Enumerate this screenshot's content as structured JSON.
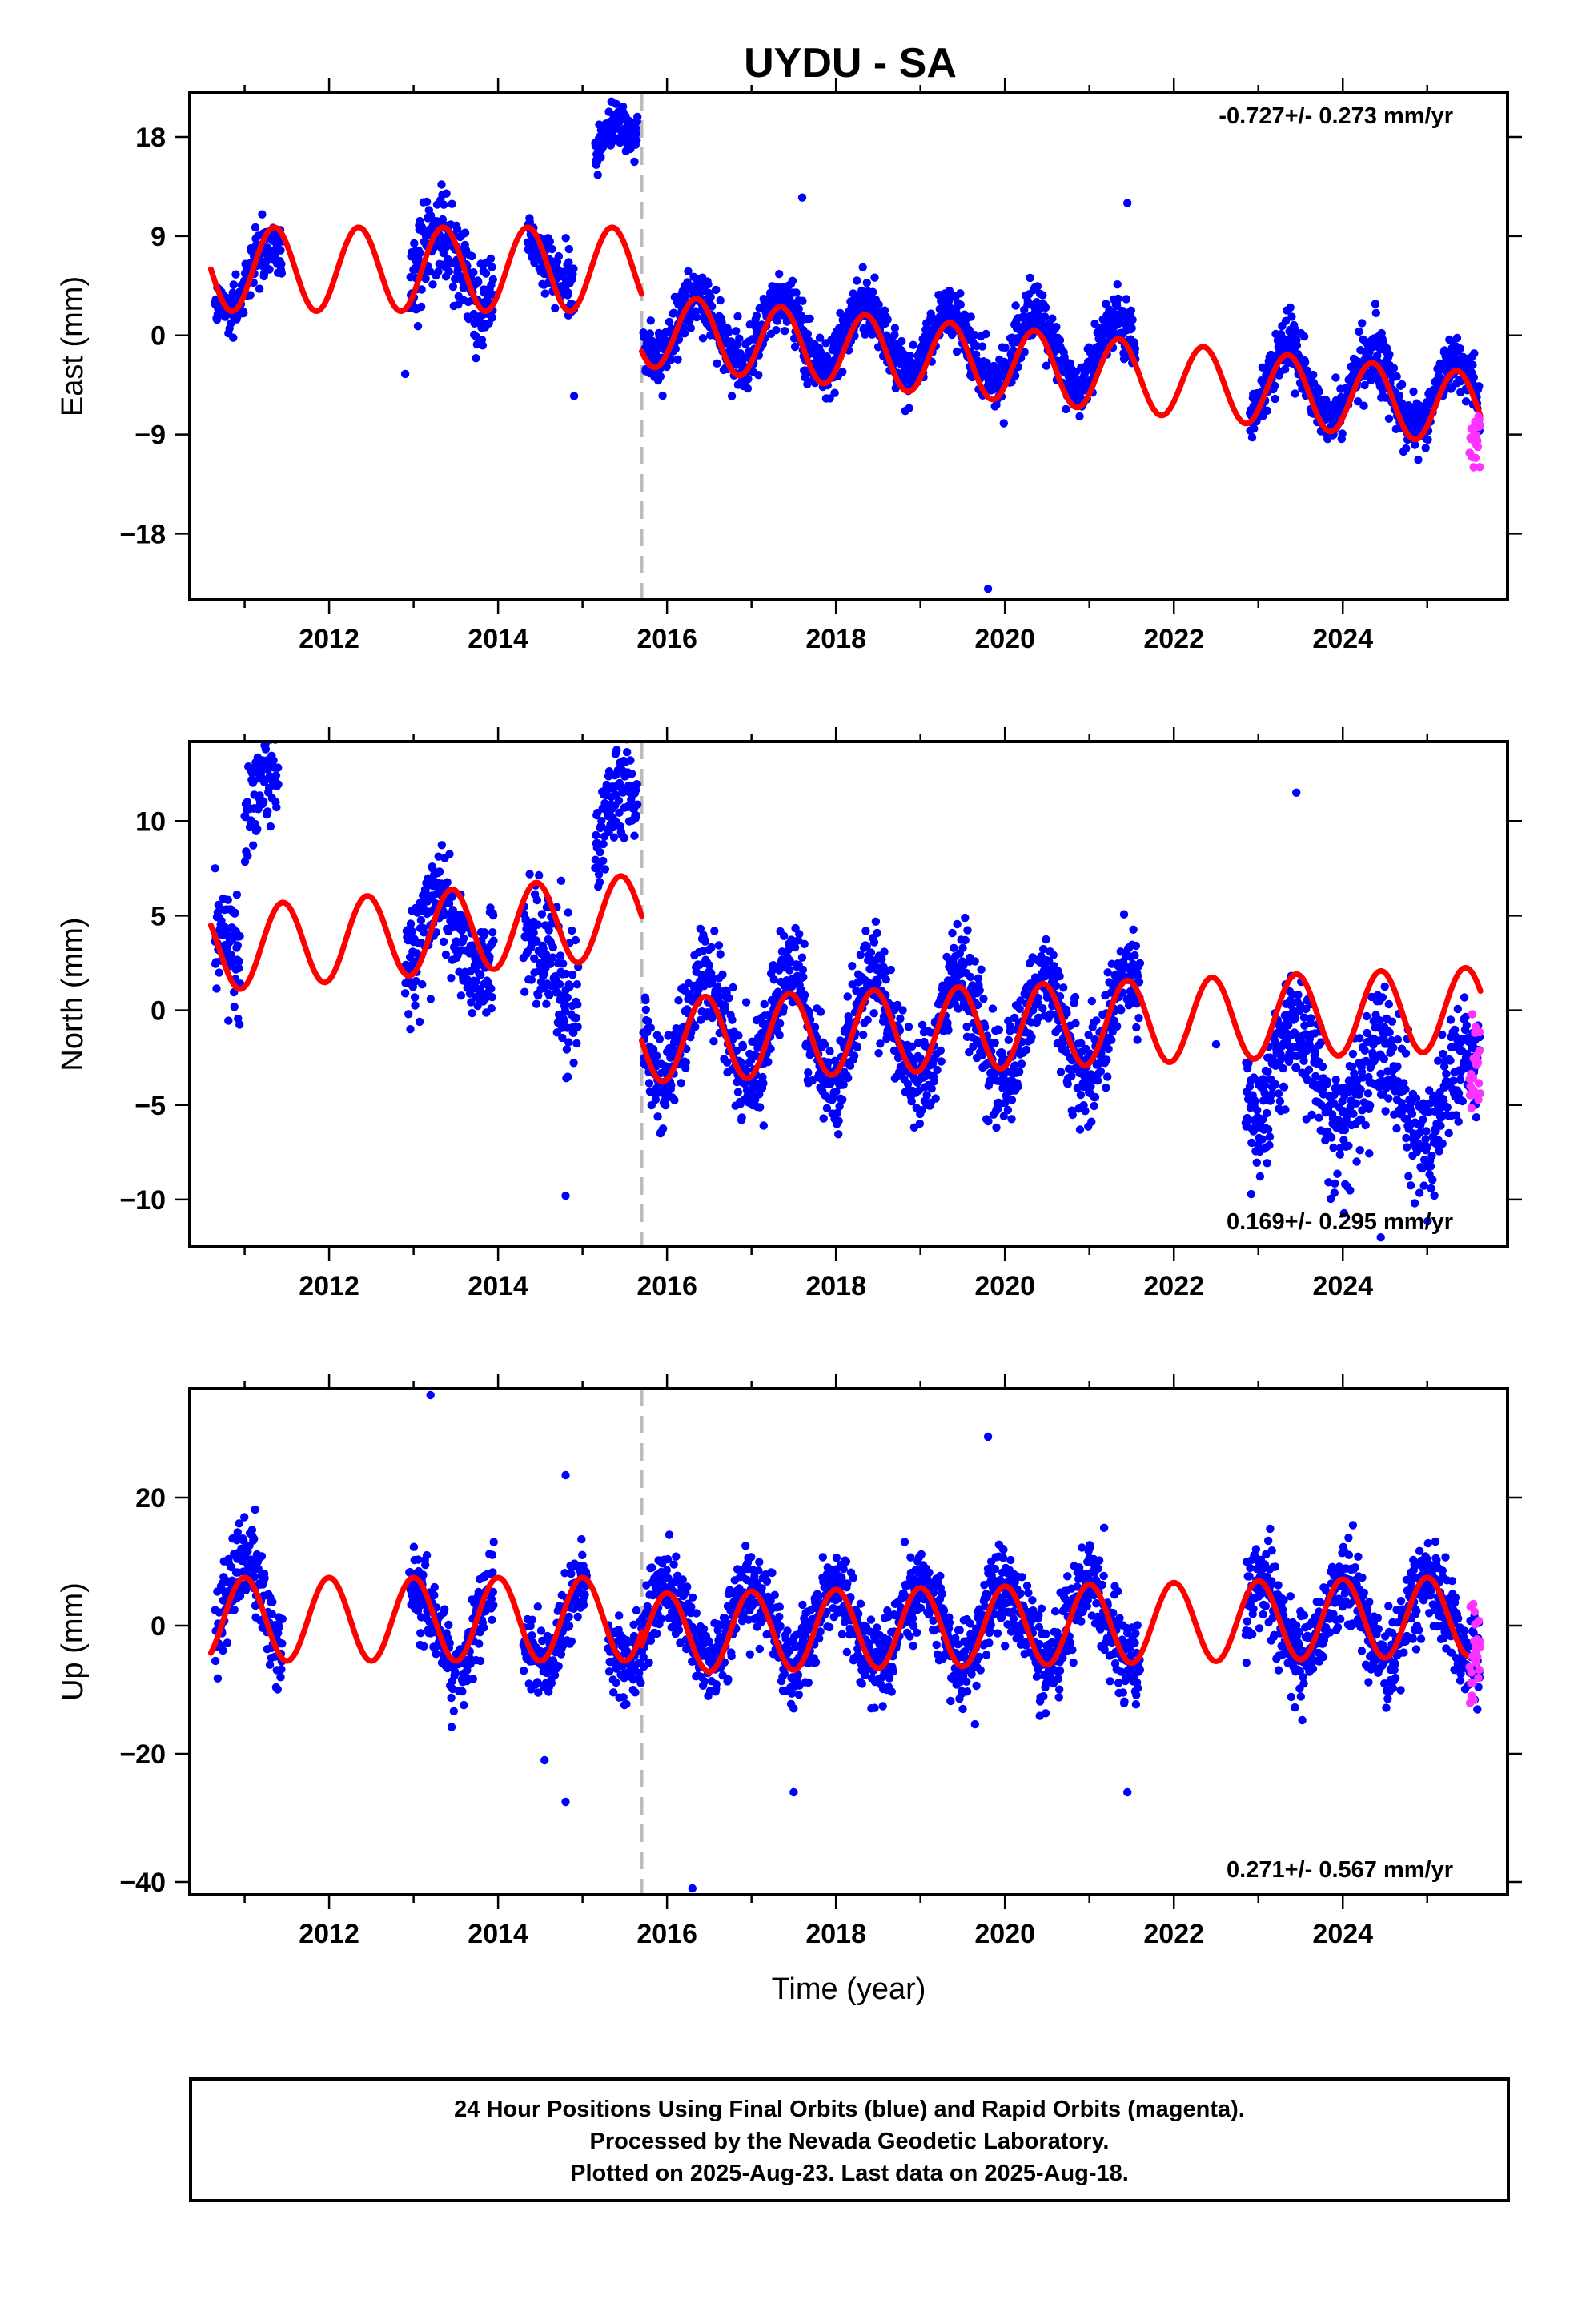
{
  "title": "UYDU - SA",
  "footer": {
    "lines": [
      "24 Hour Positions Using Final Orbits (blue) and Rapid Orbits (magenta).",
      "Processed by the Nevada Geodetic Laboratory.",
      "Plotted on 2025-Aug-23. Last data on 2025-Aug-18."
    ]
  },
  "colors": {
    "final_orbits": "#0000ff",
    "rapid_orbits": "#ff33ff",
    "model": "#ff0000",
    "offset_line": "#bbbbbb"
  },
  "chart_data": [
    {
      "type": "scatter",
      "ylabel": "East (mm)",
      "xlabel": "",
      "xlim": [
        2010.35,
        2025.95
      ],
      "ylim": [
        -24,
        22
      ],
      "x_ticks": [
        2012,
        2014,
        2016,
        2018,
        2020,
        2022,
        2024
      ],
      "y_ticks": [
        -18,
        -9,
        0,
        9,
        18
      ],
      "y_tick_labels": [
        "−18",
        "−9",
        "0",
        "9",
        "18"
      ],
      "rate_text": "-0.727+/- 0.273 mm/yr",
      "rate_position": "top-right",
      "offset_epoch": 2015.7,
      "model": {
        "pre": {
          "start": 2010.6,
          "end": 2015.7,
          "intercept": 6.0,
          "trend": 0.0,
          "amplitude": 3.8,
          "phase_year": 2011.35
        },
        "post": {
          "start": 2015.7,
          "end": 2025.63,
          "intercept": 0.5,
          "trend": -0.727,
          "amplitude": 3.3,
          "phase_year": 2016.35
        }
      },
      "segments": [
        {
          "start": 2010.65,
          "end": 2011.45,
          "level": 5.0,
          "amp": 3.0,
          "phase_year": 2011.3,
          "scatter": 1.3
        },
        {
          "start": 2012.95,
          "end": 2013.95,
          "level": 6.0,
          "amp": 3.0,
          "phase_year": 2013.3,
          "scatter": 2.0
        },
        {
          "start": 2014.35,
          "end": 2014.9,
          "level": 7.0,
          "amp": 2.0,
          "phase_year": 2014.3,
          "scatter": 1.5
        },
        {
          "start": 2015.15,
          "end": 2015.65,
          "level": 17.0,
          "amp": 2.0,
          "phase_year": 2015.45,
          "scatter": 1.0
        },
        {
          "start": 2015.72,
          "end": 2021.55,
          "level": 1.0,
          "amp": 3.0,
          "phase_year": 2016.35,
          "scatter": 1.3,
          "trend": -0.5
        },
        {
          "start": 2022.9,
          "end": 2025.62,
          "level": -4.0,
          "amp": 3.3,
          "phase_year": 2023.35,
          "scatter": 1.3,
          "trend": -0.6
        }
      ],
      "outliers": [
        [
          2019.8,
          -23.0
        ],
        [
          2014.9,
          -5.5
        ],
        [
          2017.6,
          12.5
        ],
        [
          2021.45,
          12.0
        ],
        [
          2012.9,
          -3.5
        ],
        [
          2015.4,
          21.0
        ]
      ],
      "rapid": {
        "start": 2025.5,
        "end": 2025.63,
        "min": -12.0,
        "max": -7.0
      }
    },
    {
      "type": "scatter",
      "ylabel": "North (mm)",
      "xlabel": "",
      "xlim": [
        2010.35,
        2025.95
      ],
      "ylim": [
        -12.5,
        14.2
      ],
      "x_ticks": [
        2012,
        2014,
        2016,
        2018,
        2020,
        2022,
        2024
      ],
      "y_ticks": [
        -10,
        -5,
        0,
        5,
        10
      ],
      "y_tick_labels": [
        "−10",
        "−5",
        "0",
        "5",
        "10"
      ],
      "rate_text": "0.169+/- 0.295 mm/yr",
      "rate_position": "bottom-right",
      "offset_epoch": 2015.7,
      "model": {
        "pre": {
          "start": 2010.6,
          "end": 2015.7,
          "intercept": 3.2,
          "trend": 0.35,
          "amplitude": 2.2,
          "phase_year": 2011.45
        },
        "post": {
          "start": 2015.7,
          "end": 2025.63,
          "intercept": -1.6,
          "trend": 0.169,
          "amplitude": 2.2,
          "phase_year": 2016.45
        }
      },
      "segments": [
        {
          "start": 2010.65,
          "end": 2010.95,
          "level": 2.0,
          "amp": 2.0,
          "phase_year": 2010.7,
          "scatter": 1.5
        },
        {
          "start": 2011.0,
          "end": 2011.4,
          "level": 10.5,
          "amp": 2.0,
          "phase_year": 2011.3,
          "scatter": 1.2
        },
        {
          "start": 2012.9,
          "end": 2013.95,
          "level": 4.0,
          "amp": 2.0,
          "phase_year": 2013.3,
          "scatter": 1.5
        },
        {
          "start": 2014.3,
          "end": 2014.95,
          "level": 2.0,
          "amp": 2.0,
          "phase_year": 2014.4,
          "scatter": 1.8
        },
        {
          "start": 2015.15,
          "end": 2015.65,
          "level": 10.0,
          "amp": 2.0,
          "phase_year": 2015.5,
          "scatter": 1.3
        },
        {
          "start": 2015.72,
          "end": 2021.6,
          "level": -1.0,
          "amp": 2.8,
          "phase_year": 2016.45,
          "scatter": 1.3
        },
        {
          "start": 2022.85,
          "end": 2025.62,
          "level": -3.0,
          "amp": 2.5,
          "phase_year": 2023.45,
          "scatter": 1.6,
          "trend": -0.7
        }
      ],
      "outliers": [
        [
          2014.8,
          -9.8
        ],
        [
          2022.5,
          -1.8
        ],
        [
          2010.65,
          7.5
        ],
        [
          2023.45,
          11.5
        ],
        [
          2024.45,
          -12.0
        ]
      ],
      "rapid": {
        "start": 2025.5,
        "end": 2025.63,
        "min": -5.2,
        "max": -0.2
      }
    },
    {
      "type": "scatter",
      "ylabel": "Up (mm)",
      "xlabel": "Time (year)",
      "xlim": [
        2010.35,
        2025.95
      ],
      "ylim": [
        -42,
        37
      ],
      "x_ticks": [
        2012,
        2014,
        2016,
        2018,
        2020,
        2022,
        2024
      ],
      "y_ticks": [
        -40,
        -20,
        0,
        20
      ],
      "y_tick_labels": [
        "−40",
        "−20",
        "0",
        "20"
      ],
      "rate_text": "0.271+/- 0.567 mm/yr",
      "rate_position": "bottom-right",
      "offset_epoch": 2015.7,
      "model": {
        "pre": {
          "start": 2010.6,
          "end": 2015.7,
          "intercept": 1.0,
          "trend": 0.0,
          "amplitude": 6.5,
          "phase_year": 2011.0
        },
        "post": {
          "start": 2015.7,
          "end": 2025.63,
          "intercept": -1.2,
          "trend": 0.271,
          "amplitude": 6.2,
          "phase_year": 2016.0
        }
      },
      "segments": [
        {
          "start": 2010.65,
          "end": 2011.45,
          "level": 3.0,
          "amp": 7.0,
          "phase_year": 2011.0,
          "scatter": 3.5
        },
        {
          "start": 2012.95,
          "end": 2013.95,
          "level": 0.0,
          "amp": 6.0,
          "phase_year": 2013.0,
          "scatter": 3.0
        },
        {
          "start": 2014.3,
          "end": 2015.05,
          "level": 0.0,
          "amp": 6.0,
          "phase_year": 2015.0,
          "scatter": 3.0
        },
        {
          "start": 2015.3,
          "end": 2021.6,
          "level": 0.0,
          "amp": 6.0,
          "phase_year": 2016.0,
          "scatter": 3.3
        },
        {
          "start": 2022.85,
          "end": 2025.62,
          "level": 1.0,
          "amp": 6.5,
          "phase_year": 2023.0,
          "scatter": 3.5
        }
      ],
      "outliers": [
        [
          2013.2,
          36.0
        ],
        [
          2014.8,
          23.5
        ],
        [
          2019.8,
          29.5
        ],
        [
          2016.3,
          -41.0
        ],
        [
          2014.8,
          -27.5
        ],
        [
          2017.5,
          -26.0
        ],
        [
          2021.45,
          -26.0
        ],
        [
          2014.55,
          -21.0
        ]
      ],
      "rapid": {
        "start": 2025.5,
        "end": 2025.63,
        "min": -12.5,
        "max": 4.0
      }
    }
  ]
}
